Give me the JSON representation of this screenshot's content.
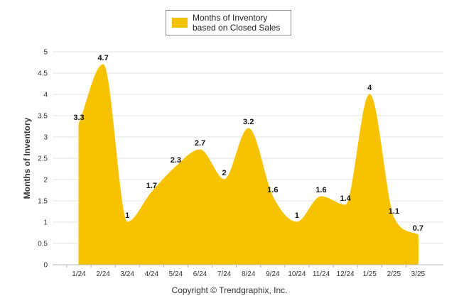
{
  "chart_data": {
    "type": "area",
    "categories": [
      "1/24",
      "2/24",
      "3/24",
      "4/24",
      "5/24",
      "6/24",
      "7/24",
      "8/24",
      "9/24",
      "10/24",
      "11/24",
      "12/24",
      "1/25",
      "2/25",
      "3/25"
    ],
    "series": [
      {
        "name": "Months of Inventory based on Closed Sales",
        "values": [
          3.3,
          4.7,
          1,
          1.7,
          2.3,
          2.7,
          2,
          3.2,
          1.6,
          1,
          1.6,
          1.4,
          4,
          1.1,
          0.7
        ]
      }
    ],
    "data_labels": [
      "3.3",
      "4.7",
      "1",
      "1.7",
      "2.3",
      "2.7",
      "2",
      "3.2",
      "1.6",
      "1",
      "1.6",
      "1.4",
      "4",
      "1.1",
      "0.7"
    ],
    "y_ticks": [
      "0",
      "0.5",
      "1",
      "1.5",
      "2",
      "2.5",
      "3",
      "3.5",
      "4",
      "4.5",
      "5"
    ],
    "ylabel": "Months of Inventory",
    "xlabel": "",
    "ylim": [
      0,
      5
    ],
    "grid": true,
    "legend_position": "top",
    "color": "#f7c300"
  },
  "footer": {
    "copyright": "Copyright © Trendgraphix, Inc."
  }
}
